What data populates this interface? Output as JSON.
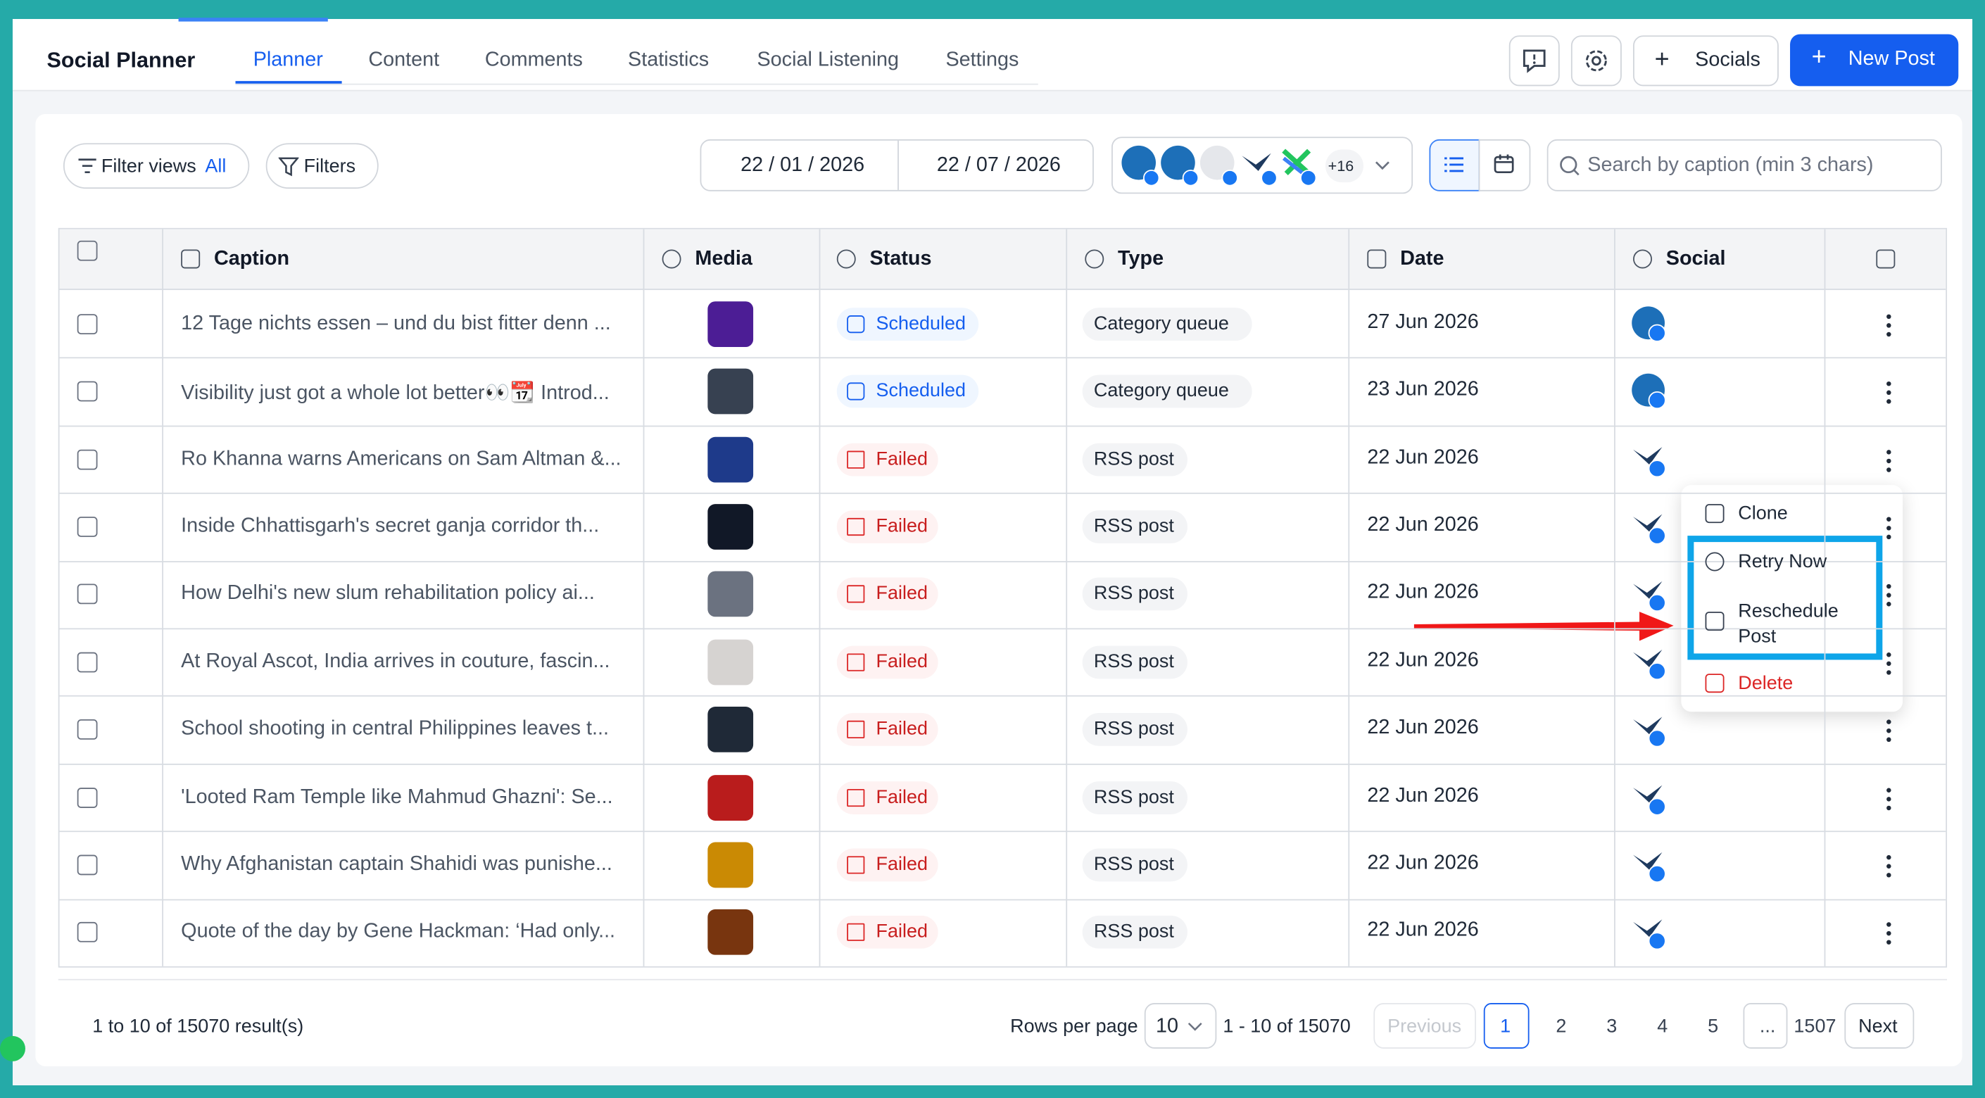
{
  "header": {
    "title": "Social Planner",
    "tabs": [
      "Planner",
      "Content",
      "Comments",
      "Statistics",
      "Social Listening",
      "Settings"
    ],
    "socials_button": "Socials",
    "new_post_button": "New Post"
  },
  "toolbar": {
    "filter_views": "Filter views",
    "filter_views_value": "All",
    "filters": "Filters",
    "date_from": "22 / 01 / 2026",
    "date_to": "22 / 07 / 2026",
    "accounts_more": "+16",
    "search_placeholder": "Search by caption (min 3 chars)"
  },
  "table": {
    "columns": [
      "Caption",
      "Media",
      "Status",
      "Type",
      "Date",
      "Social"
    ],
    "rows": [
      [
        "12 Tage nichts essen – und du bist fitter denn ...",
        "Scheduled",
        "Category queue",
        "27 Jun 2026"
      ],
      [
        "Visibility just got a whole lot better👀📆 Introd...",
        "Scheduled",
        "Category queue",
        "23 Jun 2026"
      ],
      [
        "Ro Khanna warns Americans on Sam Altman &...",
        "Failed",
        "RSS post",
        "22 Jun 2026"
      ],
      [
        "Inside Chhattisgarh's secret ganja corridor th...",
        "Failed",
        "RSS post",
        "22 Jun 2026"
      ],
      [
        "How Delhi's new slum rehabilitation policy ai...",
        "Failed",
        "RSS post",
        "22 Jun 2026"
      ],
      [
        "At Royal Ascot, India arrives in couture, fascin...",
        "Failed",
        "RSS post",
        "22 Jun 2026"
      ],
      [
        "School shooting in central Philippines leaves t...",
        "Failed",
        "RSS post",
        "22 Jun 2026"
      ],
      [
        "'Looted Ram Temple like Mahmud Ghazni': Se...",
        "Failed",
        "RSS post",
        "22 Jun 2026"
      ],
      [
        "Why Afghanistan captain Shahidi was punishe...",
        "Failed",
        "RSS post",
        "22 Jun 2026"
      ],
      [
        "Quote of the day by Gene Hackman: ‘Had only...",
        "Failed",
        "RSS post",
        "22 Jun 2026"
      ]
    ]
  },
  "menu": {
    "items": [
      "Clone",
      "Retry Now",
      "Reschedule Post",
      "Delete"
    ]
  },
  "footer": {
    "summary": "1 to 10 of 15070 result(s)",
    "rows_per_page_label": "Rows per page",
    "rows_per_page": "10",
    "range": "1 - 10 of 15070",
    "previous": "Previous",
    "pages": [
      "1",
      "2",
      "3",
      "4",
      "5",
      "...",
      "1507"
    ],
    "next": "Next"
  }
}
